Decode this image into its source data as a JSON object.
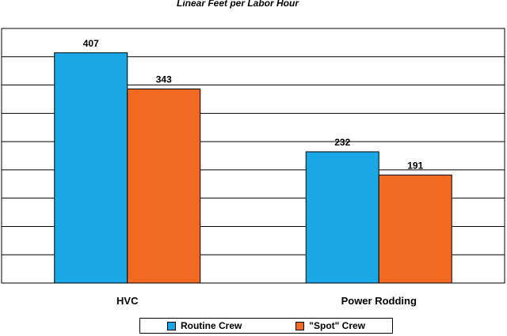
{
  "chart_data": {
    "type": "bar",
    "title": "Linear Feet per Labor Hour",
    "xlabel": "",
    "ylabel": "",
    "categories": [
      "HVC",
      "Power Rodding"
    ],
    "series": [
      {
        "name": "Routine Crew",
        "values": [
          407,
          232
        ],
        "color": "#1aa7e6"
      },
      {
        "name": "\"Spot\" Crew",
        "values": [
          343,
          191
        ],
        "color": "#f26a22"
      }
    ],
    "ylim": [
      0,
      450
    ],
    "gridlines": true,
    "gridline_step": 50,
    "legend_position": "bottom"
  }
}
